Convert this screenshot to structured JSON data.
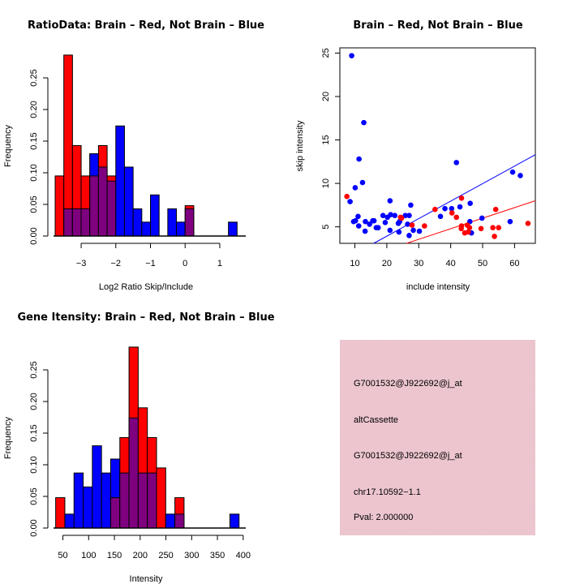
{
  "colors": {
    "brain": "#ff0000",
    "not_brain": "#0000ff",
    "overlap": "#7f007f",
    "panel_bg": "#ecc6d0",
    "pval_text": "#8b0000"
  },
  "chart_data": [
    {
      "id": "ratio_hist",
      "type": "bar",
      "title": "RatioData: Brain – Red, Not Brain – Blue",
      "xlabel": "Log2 Ratio Skip/Include",
      "ylabel": "Frequency",
      "xlim": [
        -3.75,
        1.75
      ],
      "ylim": [
        0,
        0.28
      ],
      "xticks": [
        -3,
        -2,
        -1,
        0,
        1
      ],
      "xtick_labels": [
        "−3",
        "−2",
        "−1",
        "0",
        "1"
      ],
      "yticks": [
        0,
        0.05,
        0.1,
        0.15,
        0.2,
        0.25
      ],
      "ytick_labels": [
        "0.00",
        "0.05",
        "0.10",
        "0.15",
        "0.20",
        "0.25"
      ],
      "bin_start": -3.75,
      "bin_width": 0.25,
      "series": [
        {
          "name": "Brain",
          "color": "red",
          "values": [
            0.095,
            0.286,
            0.143,
            0.095,
            0.095,
            0.143,
            0.095,
            0,
            0,
            0,
            0,
            0,
            0,
            0,
            0,
            0.048,
            0,
            0,
            0,
            0,
            0
          ]
        },
        {
          "name": "Not Brain",
          "color": "blue",
          "values": [
            0,
            0.043,
            0.043,
            0.043,
            0.13,
            0.109,
            0.087,
            0.174,
            0.109,
            0.043,
            0.022,
            0.065,
            0,
            0.043,
            0.022,
            0.043,
            0,
            0,
            0,
            0,
            0.022
          ]
        }
      ]
    },
    {
      "id": "intensity_scatter",
      "type": "scatter",
      "title": "Brain – Red, Not Brain – Blue",
      "xlabel": "include intensity",
      "ylabel": "skip intensity",
      "xlim": [
        5.3,
        66.5
      ],
      "ylim": [
        3.1,
        25.6
      ],
      "xticks": [
        10,
        20,
        30,
        40,
        50,
        60
      ],
      "yticks": [
        5,
        10,
        15,
        20,
        25
      ],
      "series": [
        {
          "name": "Not Brain",
          "color": "blue",
          "points": [
            [
              9,
              24.7
            ],
            [
              12.8,
              17
            ],
            [
              11.3,
              12.8
            ],
            [
              12.4,
              10.1
            ],
            [
              10.1,
              9.5
            ],
            [
              8.5,
              7.9
            ],
            [
              9.6,
              5.6
            ],
            [
              10.2,
              5.7
            ],
            [
              11,
              6.2
            ],
            [
              11.2,
              5.1
            ],
            [
              13.3,
              5.6
            ],
            [
              13.2,
              4.5
            ],
            [
              14.6,
              5.3
            ],
            [
              15.6,
              5.7
            ],
            [
              16,
              5.7
            ],
            [
              16.7,
              4.9
            ],
            [
              17.3,
              4.9
            ],
            [
              18.8,
              6.3
            ],
            [
              19.5,
              5.5
            ],
            [
              20.2,
              6.1
            ],
            [
              21,
              8
            ],
            [
              21.2,
              6.4
            ],
            [
              21,
              4.6
            ],
            [
              22.5,
              6.3
            ],
            [
              23.6,
              5.4
            ],
            [
              24,
              5.6
            ],
            [
              23.8,
              4.4
            ],
            [
              25.8,
              6.3
            ],
            [
              26.5,
              5.3
            ],
            [
              27,
              6.3
            ],
            [
              27.5,
              7.5
            ],
            [
              27,
              4.0
            ],
            [
              28.3,
              4.6
            ],
            [
              30.2,
              4.5
            ],
            [
              36.8,
              6.2
            ],
            [
              38.2,
              7.1
            ],
            [
              40.3,
              7.1
            ],
            [
              42.9,
              7.3
            ],
            [
              41.8,
              12.4
            ],
            [
              46.1,
              7.7
            ],
            [
              46,
              5.6
            ],
            [
              46.5,
              4.3
            ],
            [
              49.8,
              6.0
            ],
            [
              58.6,
              5.6
            ],
            [
              59.4,
              11.3
            ],
            [
              61.8,
              10.9
            ]
          ]
        },
        {
          "name": "Brain",
          "color": "red",
          "points": [
            [
              7.5,
              8.5
            ],
            [
              24.3,
              6.1
            ],
            [
              24.6,
              6.0
            ],
            [
              27.9,
              5.2
            ],
            [
              31.8,
              5.1
            ],
            [
              35.1,
              7.0
            ],
            [
              40.4,
              6.6
            ],
            [
              41.8,
              6.1
            ],
            [
              43.4,
              8.3
            ],
            [
              43.4,
              5.1
            ],
            [
              43.3,
              4.8
            ],
            [
              44.4,
              4.3
            ],
            [
              45.2,
              5.2
            ],
            [
              45.5,
              4.4
            ],
            [
              45.9,
              4.9
            ],
            [
              49.5,
              4.8
            ],
            [
              53.2,
              4.9
            ],
            [
              53.7,
              3.9
            ],
            [
              54.1,
              7.0
            ],
            [
              55,
              4.9
            ],
            [
              64.2,
              5.4
            ]
          ]
        }
      ],
      "fit_lines": [
        {
          "name": "Not Brain fit",
          "color": "blue",
          "from": [
            15.9,
            3.1
          ],
          "to": [
            66.5,
            13.3
          ]
        },
        {
          "name": "Brain fit",
          "color": "red",
          "from": [
            26.2,
            3.1
          ],
          "to": [
            66.5,
            8.0
          ]
        }
      ]
    },
    {
      "id": "gene_intensity_hist",
      "type": "bar",
      "title": "Gene Itensity: Brain – Red, Not Brain – Blue",
      "xlabel": "Intensity",
      "ylabel": "Frequency",
      "xlim": [
        35,
        405
      ],
      "ylim": [
        0,
        0.28
      ],
      "xticks": [
        50,
        100,
        150,
        200,
        250,
        300,
        350,
        400
      ],
      "xtick_labels": [
        "50",
        "100",
        "150",
        "200",
        "250",
        "300",
        "350",
        "400"
      ],
      "yticks": [
        0,
        0.05,
        0.1,
        0.15,
        0.2,
        0.25
      ],
      "ytick_labels": [
        "0.00",
        "0.05",
        "0.10",
        "0.15",
        "0.20",
        "0.25"
      ],
      "bin_start": 36,
      "bin_width": 17.8,
      "series": [
        {
          "name": "Brain",
          "color": "red",
          "values": [
            0.048,
            0,
            0,
            0,
            0,
            0,
            0.048,
            0.143,
            0.286,
            0.19,
            0.143,
            0.095,
            0,
            0.048,
            0,
            0,
            0,
            0,
            0,
            0
          ]
        },
        {
          "name": "Not Brain",
          "color": "blue",
          "values": [
            0,
            0.022,
            0.087,
            0.065,
            0.13,
            0.087,
            0.109,
            0.087,
            0.174,
            0.087,
            0.087,
            0,
            0.022,
            0.022,
            0,
            0,
            0,
            0,
            0,
            0.022
          ]
        }
      ]
    }
  ],
  "info_panel": {
    "lines": [
      "G7001532@J922692@j_at",
      "altCassette",
      "G7001532@J922692@j_at",
      "chr17.10592−1.1"
    ],
    "pval": "Pval: 2.000000"
  }
}
